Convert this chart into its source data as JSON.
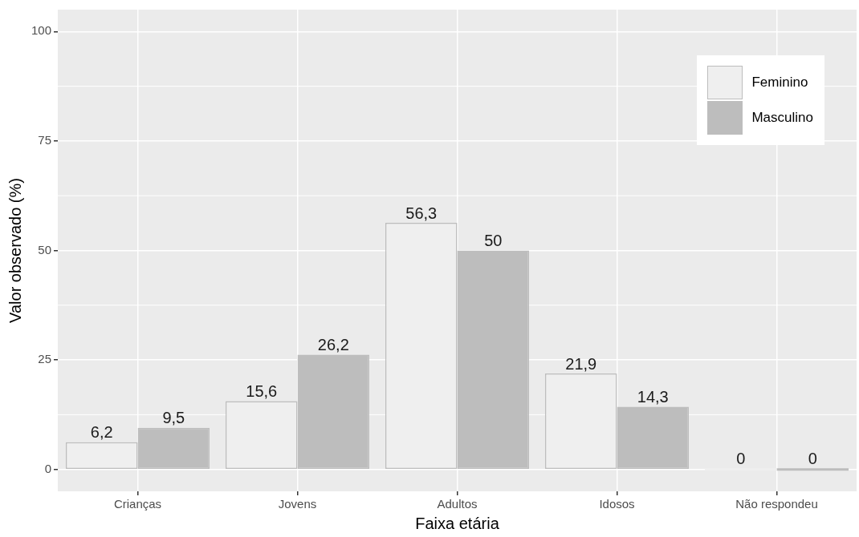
{
  "chart_data": {
    "type": "bar",
    "xlabel": "Faixa etária",
    "ylabel": "Valor observado (%)",
    "categories": [
      "Crianças",
      "Jovens",
      "Adultos",
      "Idosos",
      "Não respondeu"
    ],
    "series": [
      {
        "name": "Feminino",
        "color": "#efefef",
        "values": [
          6.2,
          15.6,
          56.3,
          21.9,
          0
        ],
        "value_labels": [
          "6,2",
          "15,6",
          "56,3",
          "21,9",
          "0"
        ]
      },
      {
        "name": "Masculino",
        "color": "#bdbdbd",
        "values": [
          9.5,
          26.2,
          50,
          14.3,
          0
        ],
        "value_labels": [
          "9,5",
          "26,2",
          "50",
          "14,3",
          "0"
        ]
      }
    ],
    "ylim": [
      -5,
      105
    ],
    "yticks": [
      0,
      25,
      50,
      75,
      100
    ],
    "grid": true,
    "legend": "top right"
  }
}
